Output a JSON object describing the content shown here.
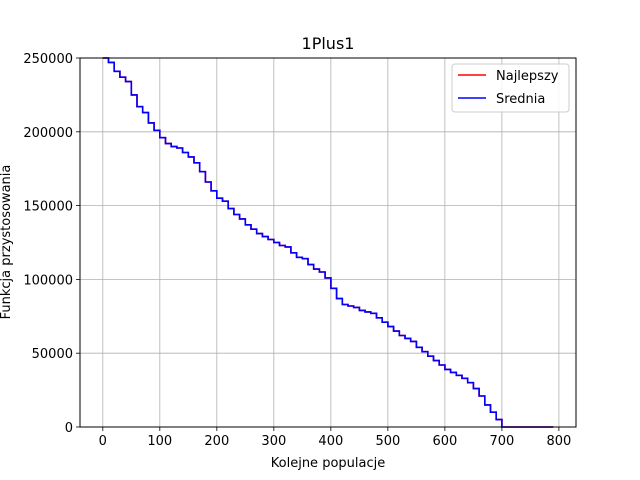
{
  "chart_data": {
    "type": "line",
    "title": "1Plus1",
    "xlabel": "Kolejne populacje",
    "ylabel": "Funkcja przystosowania",
    "xlim": [
      -40,
      830
    ],
    "ylim": [
      0,
      250000
    ],
    "xticks": [
      0,
      100,
      200,
      300,
      400,
      500,
      600,
      700,
      800
    ],
    "yticks": [
      0,
      50000,
      100000,
      150000,
      200000,
      250000
    ],
    "xtick_labels": [
      "0",
      "100",
      "200",
      "300",
      "400",
      "500",
      "600",
      "700",
      "800"
    ],
    "ytick_labels": [
      "0",
      "50000",
      "100000",
      "150000",
      "200000",
      "250000"
    ],
    "grid": true,
    "legend": "top-right",
    "series": [
      {
        "name": "Najlepszy",
        "color": "#ff0000",
        "x": [
          0,
          10,
          20,
          30,
          40,
          50,
          60,
          70,
          80,
          90,
          100,
          110,
          120,
          130,
          140,
          150,
          160,
          170,
          180,
          190,
          200,
          210,
          220,
          230,
          240,
          250,
          260,
          270,
          280,
          290,
          300,
          310,
          320,
          330,
          340,
          350,
          360,
          370,
          380,
          390,
          400,
          410,
          420,
          430,
          440,
          450,
          460,
          470,
          480,
          490,
          500,
          510,
          520,
          530,
          540,
          550,
          560,
          570,
          580,
          590,
          600,
          610,
          620,
          630,
          640,
          650,
          660,
          670,
          680,
          690,
          700,
          720,
          740,
          760,
          790
        ],
        "y": [
          250000,
          247000,
          241000,
          237000,
          234000,
          225000,
          217000,
          213000,
          206000,
          201000,
          196000,
          192000,
          190000,
          189000,
          186000,
          183000,
          179000,
          173000,
          166000,
          160000,
          155000,
          153000,
          148000,
          144000,
          141000,
          137000,
          134000,
          131000,
          129000,
          127000,
          125000,
          123000,
          122000,
          118000,
          115000,
          114000,
          110000,
          107000,
          105000,
          101000,
          94000,
          87000,
          83000,
          82000,
          81000,
          79000,
          78000,
          77000,
          74000,
          71000,
          68000,
          65000,
          62000,
          60000,
          58000,
          54000,
          51000,
          48000,
          45000,
          42000,
          39000,
          37000,
          35000,
          33000,
          30000,
          26000,
          21000,
          15000,
          10000,
          5000,
          0,
          0,
          0,
          0,
          0
        ]
      },
      {
        "name": "Srednia",
        "color": "#0000ff",
        "x": [
          0,
          10,
          20,
          30,
          40,
          50,
          60,
          70,
          80,
          90,
          100,
          110,
          120,
          130,
          140,
          150,
          160,
          170,
          180,
          190,
          200,
          210,
          220,
          230,
          240,
          250,
          260,
          270,
          280,
          290,
          300,
          310,
          320,
          330,
          340,
          350,
          360,
          370,
          380,
          390,
          400,
          410,
          420,
          430,
          440,
          450,
          460,
          470,
          480,
          490,
          500,
          510,
          520,
          530,
          540,
          550,
          560,
          570,
          580,
          590,
          600,
          610,
          620,
          630,
          640,
          650,
          660,
          670,
          680,
          690,
          700,
          720,
          740,
          760,
          790
        ],
        "y": [
          250000,
          247000,
          241000,
          237000,
          234000,
          225000,
          217000,
          213000,
          206000,
          201000,
          196000,
          192000,
          190000,
          189000,
          186000,
          183000,
          179000,
          173000,
          166000,
          160000,
          155000,
          153000,
          148000,
          144000,
          141000,
          137000,
          134000,
          131000,
          129000,
          127000,
          125000,
          123000,
          122000,
          118000,
          115000,
          114000,
          110000,
          107000,
          105000,
          101000,
          94000,
          87000,
          83000,
          82000,
          81000,
          79000,
          78000,
          77000,
          74000,
          71000,
          68000,
          65000,
          62000,
          60000,
          58000,
          54000,
          51000,
          48000,
          45000,
          42000,
          39000,
          37000,
          35000,
          33000,
          30000,
          26000,
          21000,
          15000,
          10000,
          5000,
          0,
          0,
          0,
          0,
          0
        ]
      }
    ]
  }
}
